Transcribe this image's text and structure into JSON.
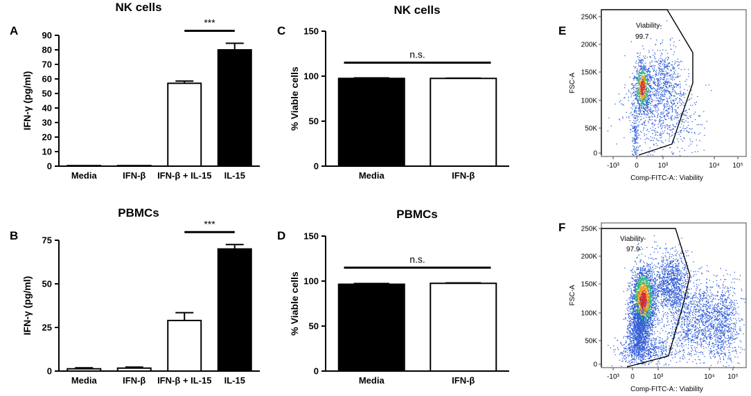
{
  "chart_data": [
    {
      "panel": "A",
      "type": "bar",
      "title": "NK cells",
      "ylabel": "IFN-γ (pg/ml)",
      "ylim": [
        0,
        90
      ],
      "yticks": [
        0,
        10,
        20,
        30,
        40,
        50,
        60,
        70,
        80,
        90
      ],
      "categories": [
        "Media",
        "IFN-β",
        "IFN-β + IL-15",
        "IL-15"
      ],
      "values": [
        0,
        0,
        57,
        80
      ],
      "errors": [
        0,
        0,
        1.5,
        4.5
      ],
      "fills": [
        "white",
        "white",
        "white",
        "black"
      ],
      "significance": {
        "from": 2,
        "to": 3,
        "label": "***"
      }
    },
    {
      "panel": "B",
      "type": "bar",
      "title": "PBMCs",
      "ylabel": "IFN-γ (pg/ml)",
      "ylim": [
        0,
        75
      ],
      "yticks": [
        0,
        25,
        50,
        75
      ],
      "categories": [
        "Media",
        "IFN-β",
        "IFN-β + IL-15",
        "IL-15"
      ],
      "values": [
        1.3,
        1.7,
        29,
        70
      ],
      "errors": [
        0.6,
        0.6,
        4.5,
        2.5
      ],
      "fills": [
        "white",
        "white",
        "white",
        "black"
      ],
      "significance": {
        "from": 2,
        "to": 3,
        "label": "***"
      }
    },
    {
      "panel": "C",
      "type": "bar",
      "title": "NK cells",
      "ylabel": "% Viable cells",
      "ylim": [
        0,
        150
      ],
      "yticks": [
        0,
        50,
        100,
        150
      ],
      "categories": [
        "Media",
        "IFN-β"
      ],
      "values": [
        97.5,
        97.5
      ],
      "errors": [
        0.6,
        0.3
      ],
      "fills": [
        "black",
        "white"
      ],
      "significance": {
        "from": 0,
        "to": 1,
        "label": "n.s."
      }
    },
    {
      "panel": "D",
      "type": "bar",
      "title": "PBMCs",
      "ylabel": "% Viable cells",
      "ylim": [
        0,
        150
      ],
      "yticks": [
        0,
        50,
        100,
        150
      ],
      "categories": [
        "Media",
        "IFN-β"
      ],
      "values": [
        96.5,
        97.5
      ],
      "errors": [
        0.8,
        0.5
      ],
      "fills": [
        "black",
        "white"
      ],
      "significance": {
        "from": 0,
        "to": 1,
        "label": "n.s."
      }
    },
    {
      "panel": "E",
      "type": "scatter",
      "xlabel": "Comp-FITC-A:: Viability",
      "ylabel": "FSC-A",
      "xticks": [
        "-10³",
        "0",
        "10³",
        "10⁴",
        "10⁵"
      ],
      "yticks": [
        "0",
        "50K",
        "100K",
        "150K",
        "200K",
        "250K"
      ],
      "gate": {
        "label": "Viability",
        "value": "99.7"
      }
    },
    {
      "panel": "F",
      "type": "scatter",
      "xlabel": "Comp-FITC-A:: Viability",
      "ylabel": "FSC-A",
      "xticks": [
        "-10³",
        "0",
        "10³",
        "10⁴",
        "10⁵"
      ],
      "yticks": [
        "0",
        "50K",
        "100K",
        "150K",
        "200K",
        "250K"
      ],
      "gate": {
        "label": "Viability",
        "value": "97.9"
      }
    }
  ],
  "colors": {
    "bar_dark": "#000000",
    "bar_light": "#ffffff",
    "dot_sparse": "#2e5bd8",
    "dot_dense": "#e8a020",
    "dot_core": "#e0261a"
  }
}
